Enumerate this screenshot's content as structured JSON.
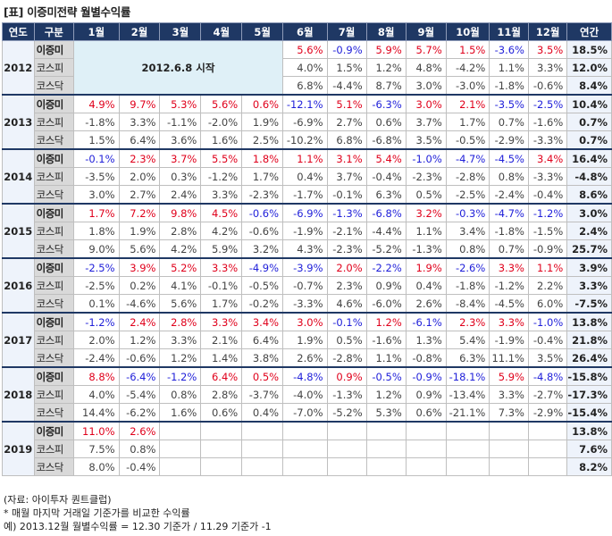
{
  "title": "[표] 이증미전략 월별수익률",
  "headers": [
    "연도",
    "구분",
    "1월",
    "2월",
    "3월",
    "4월",
    "5월",
    "6월",
    "7월",
    "8월",
    "9월",
    "10월",
    "11월",
    "12월",
    "연간"
  ],
  "colors": {
    "header_bg": "#1f3864",
    "positive": "#e0001b",
    "negative": "#1f1fd9",
    "category_bg": "#d9d9d9",
    "annual_bg": "#eef3fb",
    "note_bg": "#dff0f7"
  },
  "years": [
    {
      "year": "2012",
      "start_note": "2012.6.8 시작",
      "blank_months": 5,
      "rows": [
        {
          "label": "이증미",
          "lead": true,
          "values": [
            "5.6%",
            "-0.9%",
            "5.9%",
            "5.7%",
            "1.5%",
            "-3.6%",
            "3.5%"
          ],
          "annual": "18.5%"
        },
        {
          "label": "코스피",
          "values": [
            "4.0%",
            "1.5%",
            "1.2%",
            "4.8%",
            "-4.2%",
            "1.1%",
            "3.3%"
          ],
          "annual": "12.0%"
        },
        {
          "label": "코스닥",
          "values": [
            "6.8%",
            "-4.4%",
            "8.7%",
            "3.0%",
            "-3.0%",
            "-1.8%",
            "-0.6%"
          ],
          "annual": "8.4%"
        }
      ]
    },
    {
      "year": "2013",
      "rows": [
        {
          "label": "이증미",
          "lead": true,
          "values": [
            "4.9%",
            "9.7%",
            "5.3%",
            "5.6%",
            "0.6%",
            "-12.1%",
            "5.1%",
            "-6.3%",
            "3.0%",
            "2.1%",
            "-3.5%",
            "-2.5%"
          ],
          "annual": "10.4%"
        },
        {
          "label": "코스피",
          "values": [
            "-1.8%",
            "3.3%",
            "-1.1%",
            "-2.0%",
            "1.9%",
            "-6.9%",
            "2.7%",
            "0.6%",
            "3.7%",
            "1.7%",
            "0.7%",
            "-1.6%"
          ],
          "annual": "0.7%"
        },
        {
          "label": "코스닥",
          "values": [
            "1.5%",
            "6.4%",
            "3.6%",
            "1.6%",
            "2.5%",
            "-10.2%",
            "6.8%",
            "-6.8%",
            "3.5%",
            "-0.5%",
            "-2.9%",
            "-3.3%"
          ],
          "annual": "0.7%"
        }
      ]
    },
    {
      "year": "2014",
      "rows": [
        {
          "label": "이증미",
          "lead": true,
          "values": [
            "-0.1%",
            "2.3%",
            "3.7%",
            "5.5%",
            "1.8%",
            "1.1%",
            "3.1%",
            "5.4%",
            "-1.0%",
            "-4.7%",
            "-4.5%",
            "3.4%"
          ],
          "annual": "16.4%"
        },
        {
          "label": "코스피",
          "values": [
            "-3.5%",
            "2.0%",
            "0.3%",
            "-1.2%",
            "1.7%",
            "0.4%",
            "3.7%",
            "-0.4%",
            "-2.3%",
            "-2.8%",
            "0.8%",
            "-3.3%"
          ],
          "annual": "-4.8%"
        },
        {
          "label": "코스닥",
          "values": [
            "3.0%",
            "2.7%",
            "2.4%",
            "3.3%",
            "-2.3%",
            "-1.7%",
            "-0.1%",
            "6.3%",
            "0.5%",
            "-2.5%",
            "-2.4%",
            "-0.4%"
          ],
          "annual": "8.6%"
        }
      ]
    },
    {
      "year": "2015",
      "rows": [
        {
          "label": "이증미",
          "lead": true,
          "values": [
            "1.7%",
            "7.2%",
            "9.8%",
            "4.5%",
            "-0.6%",
            "-6.9%",
            "-1.3%",
            "-6.8%",
            "3.2%",
            "-0.3%",
            "-4.7%",
            "-1.2%"
          ],
          "annual": "3.0%"
        },
        {
          "label": "코스피",
          "values": [
            "1.8%",
            "1.9%",
            "2.8%",
            "4.2%",
            "-0.6%",
            "-1.9%",
            "-2.1%",
            "-4.4%",
            "1.1%",
            "3.4%",
            "-1.8%",
            "-1.5%"
          ],
          "annual": "2.4%"
        },
        {
          "label": "코스닥",
          "values": [
            "9.0%",
            "5.6%",
            "4.2%",
            "5.9%",
            "3.2%",
            "4.3%",
            "-2.3%",
            "-5.2%",
            "-1.3%",
            "0.8%",
            "0.7%",
            "-0.9%"
          ],
          "annual": "25.7%"
        }
      ]
    },
    {
      "year": "2016",
      "rows": [
        {
          "label": "이증미",
          "lead": true,
          "values": [
            "-2.5%",
            "3.9%",
            "5.2%",
            "3.3%",
            "-4.9%",
            "-3.9%",
            "2.0%",
            "-2.2%",
            "1.9%",
            "-2.6%",
            "3.3%",
            "1.1%"
          ],
          "annual": "3.9%"
        },
        {
          "label": "코스피",
          "values": [
            "-2.5%",
            "0.2%",
            "4.1%",
            "-0.1%",
            "-0.5%",
            "-0.7%",
            "2.3%",
            "0.9%",
            "0.4%",
            "-1.8%",
            "-1.2%",
            "2.2%"
          ],
          "annual": "3.3%"
        },
        {
          "label": "코스닥",
          "values": [
            "0.1%",
            "-4.6%",
            "5.6%",
            "1.7%",
            "-0.2%",
            "-3.3%",
            "4.6%",
            "-6.0%",
            "2.6%",
            "-8.4%",
            "-4.5%",
            "6.0%"
          ],
          "annual": "-7.5%"
        }
      ]
    },
    {
      "year": "2017",
      "rows": [
        {
          "label": "이증미",
          "lead": true,
          "values": [
            "-1.2%",
            "2.4%",
            "2.8%",
            "3.3%",
            "3.4%",
            "3.0%",
            "-0.1%",
            "1.2%",
            "-6.1%",
            "2.3%",
            "3.3%",
            "-1.0%"
          ],
          "annual": "13.8%"
        },
        {
          "label": "코스피",
          "values": [
            "2.0%",
            "1.2%",
            "3.3%",
            "2.1%",
            "6.4%",
            "1.9%",
            "0.5%",
            "-1.6%",
            "1.3%",
            "5.4%",
            "-1.9%",
            "-0.4%"
          ],
          "annual": "21.8%"
        },
        {
          "label": "코스닥",
          "values": [
            "-2.4%",
            "-0.6%",
            "1.2%",
            "1.4%",
            "3.8%",
            "2.6%",
            "-2.8%",
            "1.1%",
            "-0.8%",
            "6.3%",
            "11.1%",
            "3.5%"
          ],
          "annual": "26.4%"
        }
      ]
    },
    {
      "year": "2018",
      "rows": [
        {
          "label": "이증미",
          "lead": true,
          "values": [
            "8.8%",
            "-6.4%",
            "-1.2%",
            "6.4%",
            "0.5%",
            "-4.8%",
            "0.9%",
            "-0.5%",
            "-0.9%",
            "-18.1%",
            "5.9%",
            "-4.8%"
          ],
          "annual": "-15.8%"
        },
        {
          "label": "코스피",
          "values": [
            "4.0%",
            "-5.4%",
            "0.8%",
            "2.8%",
            "-3.7%",
            "-4.0%",
            "-1.3%",
            "1.2%",
            "0.9%",
            "-13.4%",
            "3.3%",
            "-2.7%"
          ],
          "annual": "-17.3%"
        },
        {
          "label": "코스닥",
          "values": [
            "14.4%",
            "-6.2%",
            "1.6%",
            "0.6%",
            "0.4%",
            "-7.0%",
            "-5.2%",
            "5.3%",
            "0.6%",
            "-21.1%",
            "7.3%",
            "-2.9%"
          ],
          "annual": "-15.4%"
        }
      ]
    },
    {
      "year": "2019",
      "rows": [
        {
          "label": "이증미",
          "lead": true,
          "values": [
            "11.0%",
            "2.6%",
            "",
            "",
            "",
            "",
            "",
            "",
            "",
            "",
            "",
            ""
          ],
          "annual": "13.8%"
        },
        {
          "label": "코스피",
          "values": [
            "7.5%",
            "0.8%",
            "",
            "",
            "",
            "",
            "",
            "",
            "",
            "",
            "",
            ""
          ],
          "annual": "7.6%"
        },
        {
          "label": "코스닥",
          "values": [
            "8.0%",
            "-0.4%",
            "",
            "",
            "",
            "",
            "",
            "",
            "",
            "",
            "",
            ""
          ],
          "annual": "8.2%"
        }
      ]
    }
  ],
  "notes": {
    "source": "(자료: 아이투자 퀀트클럽)",
    "method": "* 매월 마지막 거래일 기준가를 비교한 수익률",
    "example": "예) 2013.12월 월별수익률 = 12.30 기준가 / 11.29 기준가 -1"
  }
}
